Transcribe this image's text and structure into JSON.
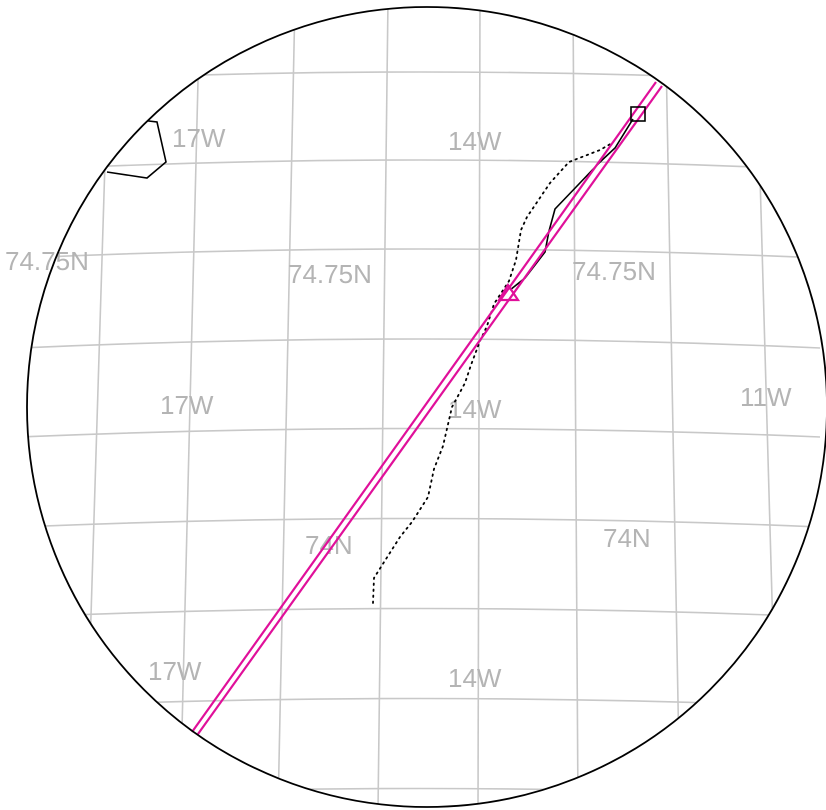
{
  "map": {
    "colors": {
      "grid": "#c8c8c8",
      "grid_label": "#b4b4b4",
      "frame": "#000000",
      "track": "#000000",
      "flight_line": "#e0109a"
    },
    "labels": {
      "lon_17w_top": "17W",
      "lon_14w_top": "14W",
      "lat_7475n_left": "74.75N",
      "lat_7475n_center": "74.75N",
      "lat_7475n_right": "74.75N",
      "lon_17w_middle": "17W",
      "lon_14w_middle": "14W",
      "lon_11w_middle": "11W",
      "lat_74n_center": "74N",
      "lat_74n_right": "74N",
      "lon_17w_bottom": "17W",
      "lon_14w_bottom": "14W"
    },
    "markers": {
      "start_marker": "square",
      "end_marker": "triangle"
    }
  }
}
